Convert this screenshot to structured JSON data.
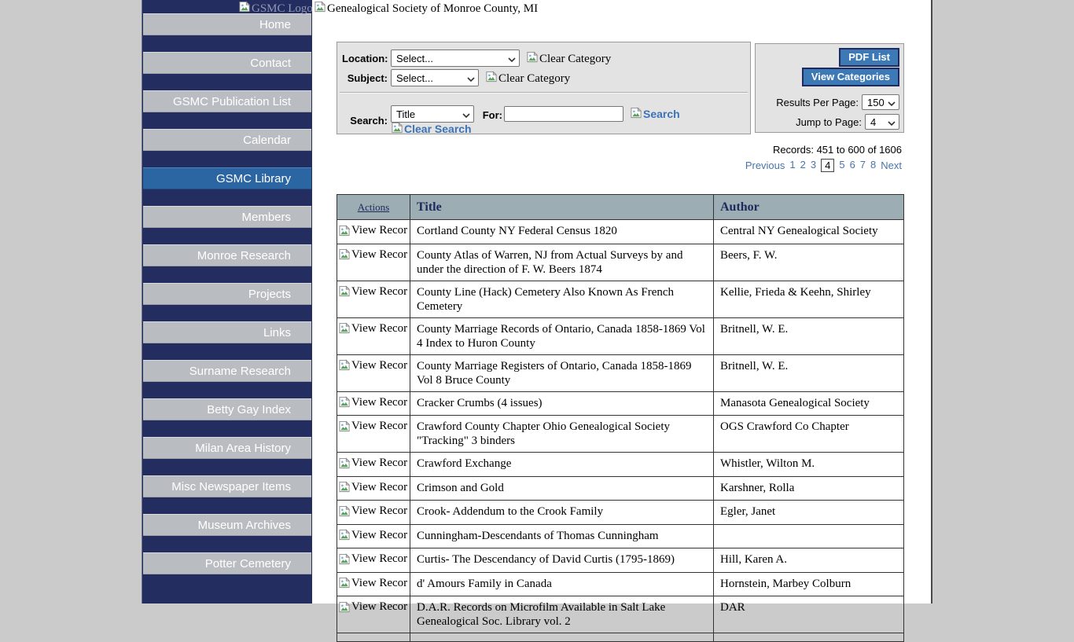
{
  "colors": {
    "sidebar_navy": "#232d5f",
    "nav_button_gray": "#b9bdc2",
    "active_blue": "#2b66a3",
    "button_blue": "#3d79b5",
    "table_header": "#9dadb4",
    "link_blue": "#4a74a8",
    "page_background": "#cbcbcb"
  },
  "icons": {
    "broken_image": "broken-image-icon",
    "select_chevron": "chevron-down-icon"
  },
  "header": {
    "logo_alt": "GSMC Logo",
    "site_title_alt": "Genealogical Society of Monroe County, MI"
  },
  "sidebar": {
    "items": [
      {
        "label": "Home",
        "active": false
      },
      {
        "label": "Contact",
        "active": false
      },
      {
        "label": "GSMC Publication List",
        "active": false
      },
      {
        "label": "Calendar",
        "active": false
      },
      {
        "label": "GSMC Library",
        "active": true
      },
      {
        "label": "Members",
        "active": false
      },
      {
        "label": "Monroe Research",
        "active": false
      },
      {
        "label": "Projects",
        "active": false
      },
      {
        "label": "Links",
        "active": false
      },
      {
        "label": "Surname Research",
        "active": false
      },
      {
        "label": "Betty Gay Index",
        "active": false
      },
      {
        "label": "Milan Area History",
        "active": false
      },
      {
        "label": "Misc Newspaper Items",
        "active": false
      },
      {
        "label": "Museum Archives",
        "active": false
      },
      {
        "label": "Potter Cemetery",
        "active": false
      }
    ]
  },
  "filters": {
    "location_label": "Location:",
    "location_value": "Select...",
    "subject_label": "Subject:",
    "subject_value": "Select...",
    "clear_category_label": "Clear Category",
    "search_label": "Search:",
    "search_field_value": "Title",
    "for_label": "For:",
    "search_input_value": "",
    "search_button_label": "Search",
    "clear_search_label": "Clear Search"
  },
  "panel": {
    "pdf_list_label": "PDF List",
    "view_categories_label": "View Categories",
    "results_per_page_label": "Results Per Page:",
    "results_per_page_value": "150",
    "jump_to_page_label": "Jump to Page:",
    "jump_to_page_value": "4"
  },
  "results": {
    "records_text": "Records: 451 to 600 of 1606",
    "pagination": {
      "previous_label": "Previous",
      "pages": [
        "1",
        "2",
        "3",
        "4",
        "5",
        "6",
        "7",
        "8"
      ],
      "current_page": "4",
      "next_label": "Next"
    }
  },
  "table": {
    "headers": {
      "actions": "Actions",
      "title": "Title",
      "author": "Author"
    },
    "view_record_label": "View Recor",
    "rows": [
      {
        "title": "Cortland County NY Federal Census 1820",
        "author": "Central NY Genealogical Society"
      },
      {
        "title": "County Atlas of Warren, NJ from Actual Surveys by and under the direction of F. W. Beers 1874",
        "author": "Beers, F. W."
      },
      {
        "title": "County Line (Hack) Cemetery Also Known As French Cemetery",
        "author": "Kellie, Frieda & Keehn, Shirley"
      },
      {
        "title": "County Marriage Records of Ontario, Canada 1858-1869 Vol 4 Index to Huron County",
        "author": "Britnell, W. E."
      },
      {
        "title": "County Marriage Registers of Ontario, Canada 1858-1869 Vol 8 Bruce County",
        "author": "Britnell, W. E."
      },
      {
        "title": "Cracker Crumbs (4 issues)",
        "author": "Manasota Genealogical Society"
      },
      {
        "title": "Crawford County Chapter Ohio Genealogical Society \"Tracking\" 3 binders",
        "author": "OGS Crawford Co Chapter"
      },
      {
        "title": "Crawford Exchange",
        "author": "Whistler, Wilton M."
      },
      {
        "title": "Crimson and Gold",
        "author": "Karshner, Rolla"
      },
      {
        "title": "Crook- Addendum to the Crook Family",
        "author": "Egler, Janet"
      },
      {
        "title": "Cunningham-Descendants of Thomas Cunningham",
        "author": ""
      },
      {
        "title": "Curtis- The Descendancy of David Curtis (1795-1869)",
        "author": "Hill, Karen A."
      },
      {
        "title": "d' Amours Family in Canada",
        "author": "Hornstein, Marbey Colburn"
      },
      {
        "title": "D.A.R. Records on Microfilm Available in Salt Lake Genealogical Soc. Library vol. 2",
        "author": "DAR"
      },
      {
        "title": "",
        "author": ""
      }
    ]
  }
}
